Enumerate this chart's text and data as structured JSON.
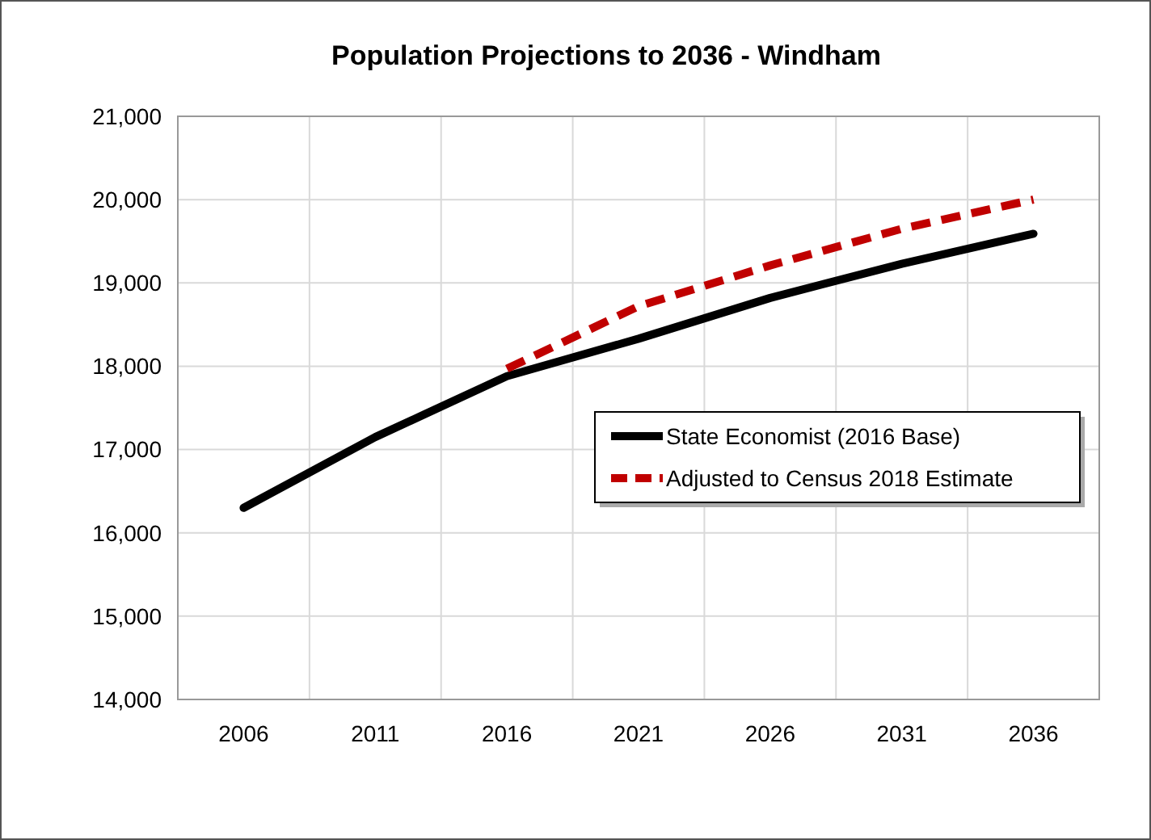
{
  "chart_data": {
    "type": "line",
    "title": "Population Projections to 2036 - Windham",
    "categories": [
      "2006",
      "2011",
      "2016",
      "2021",
      "2026",
      "2031",
      "2036"
    ],
    "series": [
      {
        "name": "State Economist (2016 Base)",
        "color": "#000000",
        "line_style": "solid",
        "values": [
          16300,
          17150,
          17880,
          18330,
          18820,
          19230,
          19590
        ]
      },
      {
        "name": "Adjusted to Census 2018 Estimate",
        "color": "#c00000",
        "line_style": "dashed",
        "values": [
          null,
          null,
          17970,
          18720,
          19210,
          19650,
          20000
        ]
      }
    ],
    "ylim": [
      14000,
      21000
    ],
    "yticks": [
      {
        "value": 14000,
        "label": "14,000"
      },
      {
        "value": 15000,
        "label": "15,000"
      },
      {
        "value": 16000,
        "label": "16,000"
      },
      {
        "value": 17000,
        "label": "17,000"
      },
      {
        "value": 18000,
        "label": "18,000"
      },
      {
        "value": 19000,
        "label": "19,000"
      },
      {
        "value": 20000,
        "label": "20,000"
      },
      {
        "value": 21000,
        "label": "21,000"
      }
    ],
    "grid": true,
    "legend": "right"
  }
}
